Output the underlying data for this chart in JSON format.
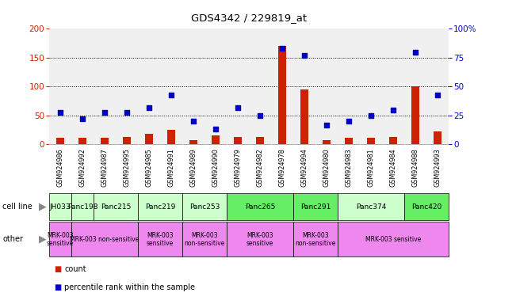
{
  "title": "GDS4342 / 229819_at",
  "samples": [
    "GSM924986",
    "GSM924992",
    "GSM924987",
    "GSM924995",
    "GSM924985",
    "GSM924991",
    "GSM924989",
    "GSM924990",
    "GSM924979",
    "GSM924982",
    "GSM924978",
    "GSM924994",
    "GSM924980",
    "GSM924983",
    "GSM924981",
    "GSM924984",
    "GSM924988",
    "GSM924993"
  ],
  "counts": [
    12,
    12,
    12,
    13,
    18,
    25,
    8,
    15,
    13,
    13,
    170,
    95,
    8,
    12,
    12,
    13,
    100,
    22
  ],
  "percentiles": [
    28,
    22,
    28,
    28,
    32,
    43,
    20,
    13,
    32,
    25,
    83,
    77,
    17,
    20,
    25,
    30,
    80,
    43
  ],
  "cell_lines": [
    {
      "label": "JH033",
      "start": 0,
      "end": 1,
      "color": "#ccffcc"
    },
    {
      "label": "Panc198",
      "start": 1,
      "end": 2,
      "color": "#ccffcc"
    },
    {
      "label": "Panc215",
      "start": 2,
      "end": 4,
      "color": "#ccffcc"
    },
    {
      "label": "Panc219",
      "start": 4,
      "end": 6,
      "color": "#ccffcc"
    },
    {
      "label": "Panc253",
      "start": 6,
      "end": 8,
      "color": "#ccffcc"
    },
    {
      "label": "Panc265",
      "start": 8,
      "end": 11,
      "color": "#66ee66"
    },
    {
      "label": "Panc291",
      "start": 11,
      "end": 13,
      "color": "#66ee66"
    },
    {
      "label": "Panc374",
      "start": 13,
      "end": 16,
      "color": "#ccffcc"
    },
    {
      "label": "Panc420",
      "start": 16,
      "end": 18,
      "color": "#66ee66"
    }
  ],
  "other_labels": [
    {
      "label": "MRK-003\nsensitive",
      "start": 0,
      "end": 1,
      "color": "#ee88ee"
    },
    {
      "label": "MRK-003 non-sensitive",
      "start": 1,
      "end": 4,
      "color": "#ee88ee"
    },
    {
      "label": "MRK-003\nsensitive",
      "start": 4,
      "end": 6,
      "color": "#ee88ee"
    },
    {
      "label": "MRK-003\nnon-sensitive",
      "start": 6,
      "end": 8,
      "color": "#ee88ee"
    },
    {
      "label": "MRK-003\nsensitive",
      "start": 8,
      "end": 11,
      "color": "#ee88ee"
    },
    {
      "label": "MRK-003\nnon-sensitive",
      "start": 11,
      "end": 13,
      "color": "#ee88ee"
    },
    {
      "label": "MRK-003 sensitive",
      "start": 13,
      "end": 18,
      "color": "#ee88ee"
    }
  ],
  "ylim_left": [
    0,
    200
  ],
  "ylim_right": [
    0,
    100
  ],
  "yticks_left": [
    0,
    50,
    100,
    150,
    200
  ],
  "yticks_right": [
    0,
    25,
    50,
    75,
    100
  ],
  "ytick_labels_right": [
    "0",
    "25",
    "50",
    "75",
    "100%"
  ],
  "bar_color": "#cc2200",
  "point_color": "#0000cc",
  "plot_bg": "#f0f0f0",
  "dotted_vals": [
    50,
    100,
    150
  ]
}
